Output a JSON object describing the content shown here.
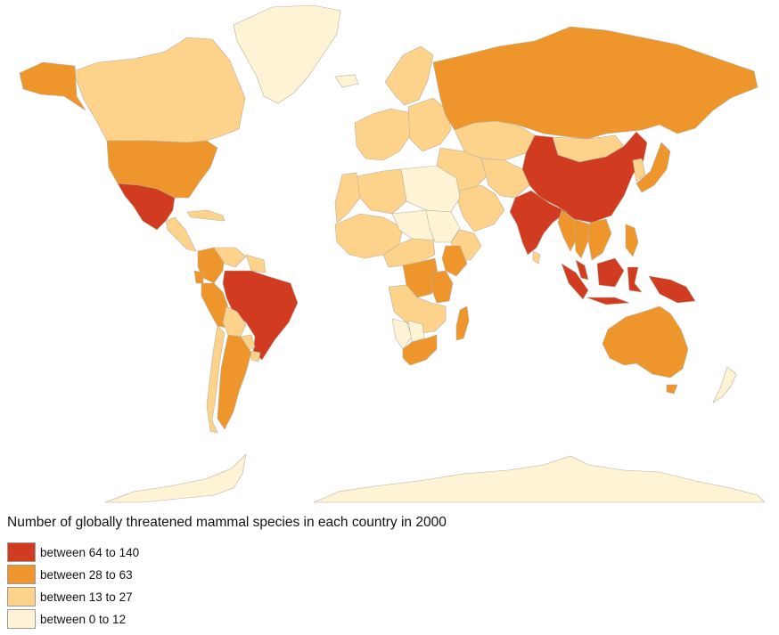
{
  "map": {
    "title": "Number of globally threatened mammal species in each country in 2000",
    "legend": [
      {
        "label": "between 64 to 140",
        "color": "#d13b1f"
      },
      {
        "label": "between 28 to 63",
        "color": "#ee962c"
      },
      {
        "label": "between 13 to 27",
        "color": "#fdd28a"
      },
      {
        "label": "between 0 to 12",
        "color": "#fff3d6"
      }
    ],
    "regions": [
      {
        "name": "Greenland",
        "cls": 3
      },
      {
        "name": "Canada",
        "cls": 2
      },
      {
        "name": "Alaska",
        "cls": 1
      },
      {
        "name": "United States",
        "cls": 1
      },
      {
        "name": "Mexico",
        "cls": 0
      },
      {
        "name": "Central America",
        "cls": 2
      },
      {
        "name": "Caribbean",
        "cls": 2
      },
      {
        "name": "Colombia",
        "cls": 1
      },
      {
        "name": "Venezuela",
        "cls": 2
      },
      {
        "name": "Guianas",
        "cls": 2
      },
      {
        "name": "Peru",
        "cls": 1
      },
      {
        "name": "Ecuador",
        "cls": 1
      },
      {
        "name": "Brazil",
        "cls": 0
      },
      {
        "name": "Bolivia",
        "cls": 2
      },
      {
        "name": "Paraguay",
        "cls": 2
      },
      {
        "name": "Argentina",
        "cls": 1
      },
      {
        "name": "Chile",
        "cls": 2
      },
      {
        "name": "Uruguay",
        "cls": 2
      },
      {
        "name": "Iceland",
        "cls": 3
      },
      {
        "name": "Scandinavia",
        "cls": 2
      },
      {
        "name": "Western Europe",
        "cls": 2
      },
      {
        "name": "Eastern Europe",
        "cls": 2
      },
      {
        "name": "Russia",
        "cls": 1
      },
      {
        "name": "Kazakhstan",
        "cls": 2
      },
      {
        "name": "Mongolia",
        "cls": 2
      },
      {
        "name": "China",
        "cls": 0
      },
      {
        "name": "India",
        "cls": 0
      },
      {
        "name": "Middle East",
        "cls": 2
      },
      {
        "name": "Arabian Peninsula",
        "cls": 2
      },
      {
        "name": "Iran",
        "cls": 2
      },
      {
        "name": "Japan",
        "cls": 1
      },
      {
        "name": "Korea",
        "cls": 2
      },
      {
        "name": "Myanmar",
        "cls": 1
      },
      {
        "name": "Thailand",
        "cls": 1
      },
      {
        "name": "Indochina",
        "cls": 1
      },
      {
        "name": "Malaysia",
        "cls": 0
      },
      {
        "name": "Sumatra",
        "cls": 0
      },
      {
        "name": "Borneo",
        "cls": 0
      },
      {
        "name": "Java",
        "cls": 0
      },
      {
        "name": "Sulawesi",
        "cls": 0
      },
      {
        "name": "New Guinea",
        "cls": 0
      },
      {
        "name": "Philippines",
        "cls": 1
      },
      {
        "name": "Sri Lanka",
        "cls": 2
      },
      {
        "name": "Australia",
        "cls": 1
      },
      {
        "name": "Tasmania",
        "cls": 1
      },
      {
        "name": "New Zealand",
        "cls": 3
      },
      {
        "name": "Libya and Egypt",
        "cls": 3
      },
      {
        "name": "Algeria",
        "cls": 2
      },
      {
        "name": "Morocco",
        "cls": 2
      },
      {
        "name": "West Africa",
        "cls": 2
      },
      {
        "name": "Niger and Chad",
        "cls": 3
      },
      {
        "name": "Sudan",
        "cls": 3
      },
      {
        "name": "Ethiopia",
        "cls": 2
      },
      {
        "name": "Kenya",
        "cls": 1
      },
      {
        "name": "Central Africa",
        "cls": 2
      },
      {
        "name": "DR Congo",
        "cls": 1
      },
      {
        "name": "Tanzania",
        "cls": 1
      },
      {
        "name": "Southern Africa",
        "cls": 2
      },
      {
        "name": "Namibia",
        "cls": 3
      },
      {
        "name": "Botswana",
        "cls": 3
      },
      {
        "name": "South Africa",
        "cls": 1
      },
      {
        "name": "Madagascar",
        "cls": 1
      },
      {
        "name": "Antarctica",
        "cls": 3
      },
      {
        "name": "Antarctic Peninsula",
        "cls": 3
      }
    ]
  }
}
